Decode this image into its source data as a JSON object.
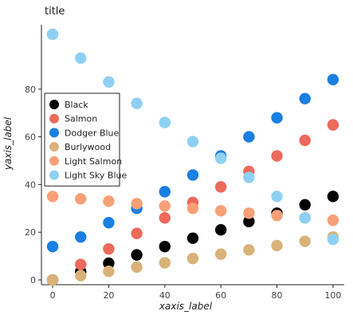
{
  "chart_data": {
    "type": "scatter",
    "title": "title",
    "xlabel": "xaxis_label",
    "ylabel": "yaxis_label",
    "xlim": [
      -4,
      104
    ],
    "ylim": [
      -2,
      107
    ],
    "xticks": [
      0,
      20,
      40,
      60,
      80,
      100
    ],
    "yticks": [
      0,
      20,
      40,
      60,
      80
    ],
    "grid": false,
    "legend_position": "left",
    "x": [
      0,
      10,
      20,
      30,
      40,
      50,
      60,
      70,
      80,
      90,
      100
    ],
    "series": [
      {
        "name": "Black",
        "color": "#000000",
        "values": [
          0,
          3.5,
          7,
          10.5,
          14,
          17.5,
          21,
          24.5,
          28,
          31.5,
          35
        ]
      },
      {
        "name": "Salmon",
        "color": "#ec6a5c",
        "values": [
          0,
          6.5,
          13,
          19.5,
          26,
          32.5,
          39,
          45.5,
          52,
          58.5,
          65
        ]
      },
      {
        "name": "Dodger Blue",
        "color": "#1a7fe0",
        "values": [
          14,
          18,
          24,
          30,
          37,
          44,
          52,
          60,
          68,
          76,
          84
        ]
      },
      {
        "name": "Burlywood",
        "color": "#d9b27a",
        "values": [
          0,
          1.8,
          3.6,
          5.4,
          7.2,
          9,
          10.8,
          12.6,
          14.4,
          16.2,
          18
        ]
      },
      {
        "name": "Light Salmon",
        "color": "#f7a078",
        "values": [
          35,
          34,
          33,
          32,
          31,
          30,
          29,
          28,
          27,
          26,
          25
        ]
      },
      {
        "name": "Light Sky Blue",
        "color": "#8fd0f2",
        "values": [
          103,
          93,
          83,
          74,
          66,
          58,
          51,
          43,
          35,
          26,
          17
        ]
      }
    ]
  }
}
